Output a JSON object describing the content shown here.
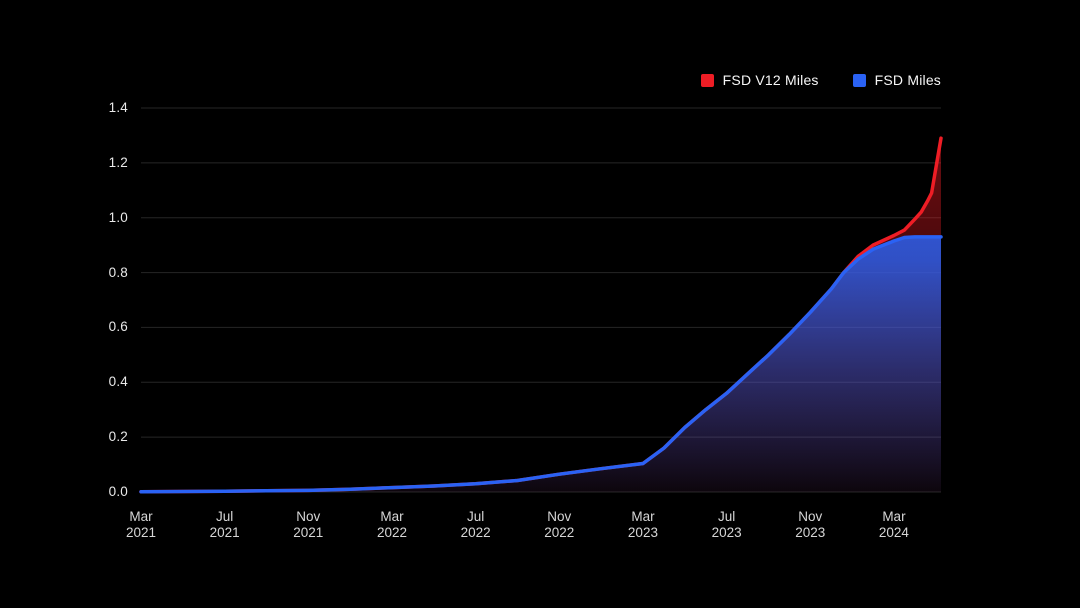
{
  "page": {
    "background": "#000000"
  },
  "legend": {
    "items": [
      {
        "label": "FSD V12 Miles",
        "color": "#ee1d25",
        "swatch_icon": "red-square-swatch"
      },
      {
        "label": "FSD Miles",
        "color": "#2a62f4",
        "swatch_icon": "blue-square-swatch"
      }
    ]
  },
  "chart_data": {
    "type": "area",
    "title": "",
    "xlabel": "",
    "ylabel": "",
    "grid": true,
    "legend_position": "top-right",
    "background": "#000000",
    "gridline_color": "#262626",
    "ylim": [
      0,
      1.4
    ],
    "x_unit": "months since Mar 2021",
    "x_max_m": 38.25,
    "y_ticks": [
      {
        "value": 0.0,
        "label": "0.0"
      },
      {
        "value": 0.2,
        "label": "0.2"
      },
      {
        "value": 0.4,
        "label": "0.4"
      },
      {
        "value": 0.6,
        "label": "0.6"
      },
      {
        "value": 0.8,
        "label": "0.8"
      },
      {
        "value": 1.0,
        "label": "1.0"
      },
      {
        "value": 1.2,
        "label": "1.2"
      },
      {
        "value": 1.4,
        "label": "1.4"
      }
    ],
    "x_ticks": [
      {
        "m": 0,
        "month": "Mar",
        "year": "2021"
      },
      {
        "m": 4,
        "month": "Jul",
        "year": "2021"
      },
      {
        "m": 8,
        "month": "Nov",
        "year": "2021"
      },
      {
        "m": 12,
        "month": "Mar",
        "year": "2022"
      },
      {
        "m": 16,
        "month": "Jul",
        "year": "2022"
      },
      {
        "m": 20,
        "month": "Nov",
        "year": "2022"
      },
      {
        "m": 24,
        "month": "Mar",
        "year": "2023"
      },
      {
        "m": 28,
        "month": "Jul",
        "year": "2023"
      },
      {
        "m": 32,
        "month": "Nov",
        "year": "2023"
      },
      {
        "m": 36,
        "month": "Mar",
        "year": "2024"
      }
    ],
    "series": [
      {
        "name": "FSD V12 Miles",
        "color": "#ee1d25",
        "points": [
          [
            0,
            0.001
          ],
          [
            2,
            0.002
          ],
          [
            4,
            0.003
          ],
          [
            6,
            0.0045
          ],
          [
            8,
            0.006
          ],
          [
            10,
            0.01
          ],
          [
            12,
            0.016
          ],
          [
            14,
            0.022
          ],
          [
            16,
            0.03
          ],
          [
            18,
            0.042
          ],
          [
            20,
            0.065
          ],
          [
            22,
            0.085
          ],
          [
            24,
            0.104
          ],
          [
            25,
            0.16
          ],
          [
            26,
            0.235
          ],
          [
            27,
            0.3
          ],
          [
            28,
            0.36
          ],
          [
            29,
            0.43
          ],
          [
            30,
            0.5
          ],
          [
            31,
            0.575
          ],
          [
            32,
            0.655
          ],
          [
            33,
            0.74
          ],
          [
            33.6,
            0.8
          ],
          [
            34.3,
            0.86
          ],
          [
            35,
            0.9
          ],
          [
            36,
            0.935
          ],
          [
            36.5,
            0.955
          ],
          [
            37,
            0.995
          ],
          [
            37.3,
            1.02
          ],
          [
            37.6,
            1.06
          ],
          [
            37.8,
            1.09
          ],
          [
            38.25,
            1.29
          ]
        ]
      },
      {
        "name": "FSD Miles",
        "color": "#2a62f4",
        "points": [
          [
            0,
            0.001
          ],
          [
            2,
            0.002
          ],
          [
            4,
            0.003
          ],
          [
            6,
            0.0045
          ],
          [
            8,
            0.006
          ],
          [
            10,
            0.01
          ],
          [
            12,
            0.016
          ],
          [
            14,
            0.022
          ],
          [
            16,
            0.03
          ],
          [
            18,
            0.042
          ],
          [
            20,
            0.065
          ],
          [
            22,
            0.085
          ],
          [
            24,
            0.104
          ],
          [
            25,
            0.16
          ],
          [
            26,
            0.235
          ],
          [
            27,
            0.3
          ],
          [
            28,
            0.36
          ],
          [
            29,
            0.43
          ],
          [
            30,
            0.5
          ],
          [
            31,
            0.575
          ],
          [
            32,
            0.655
          ],
          [
            33,
            0.74
          ],
          [
            33.6,
            0.8
          ],
          [
            34.3,
            0.85
          ],
          [
            35,
            0.885
          ],
          [
            36,
            0.915
          ],
          [
            36.5,
            0.928
          ],
          [
            37,
            0.93
          ],
          [
            38.25,
            0.93
          ]
        ]
      }
    ]
  }
}
